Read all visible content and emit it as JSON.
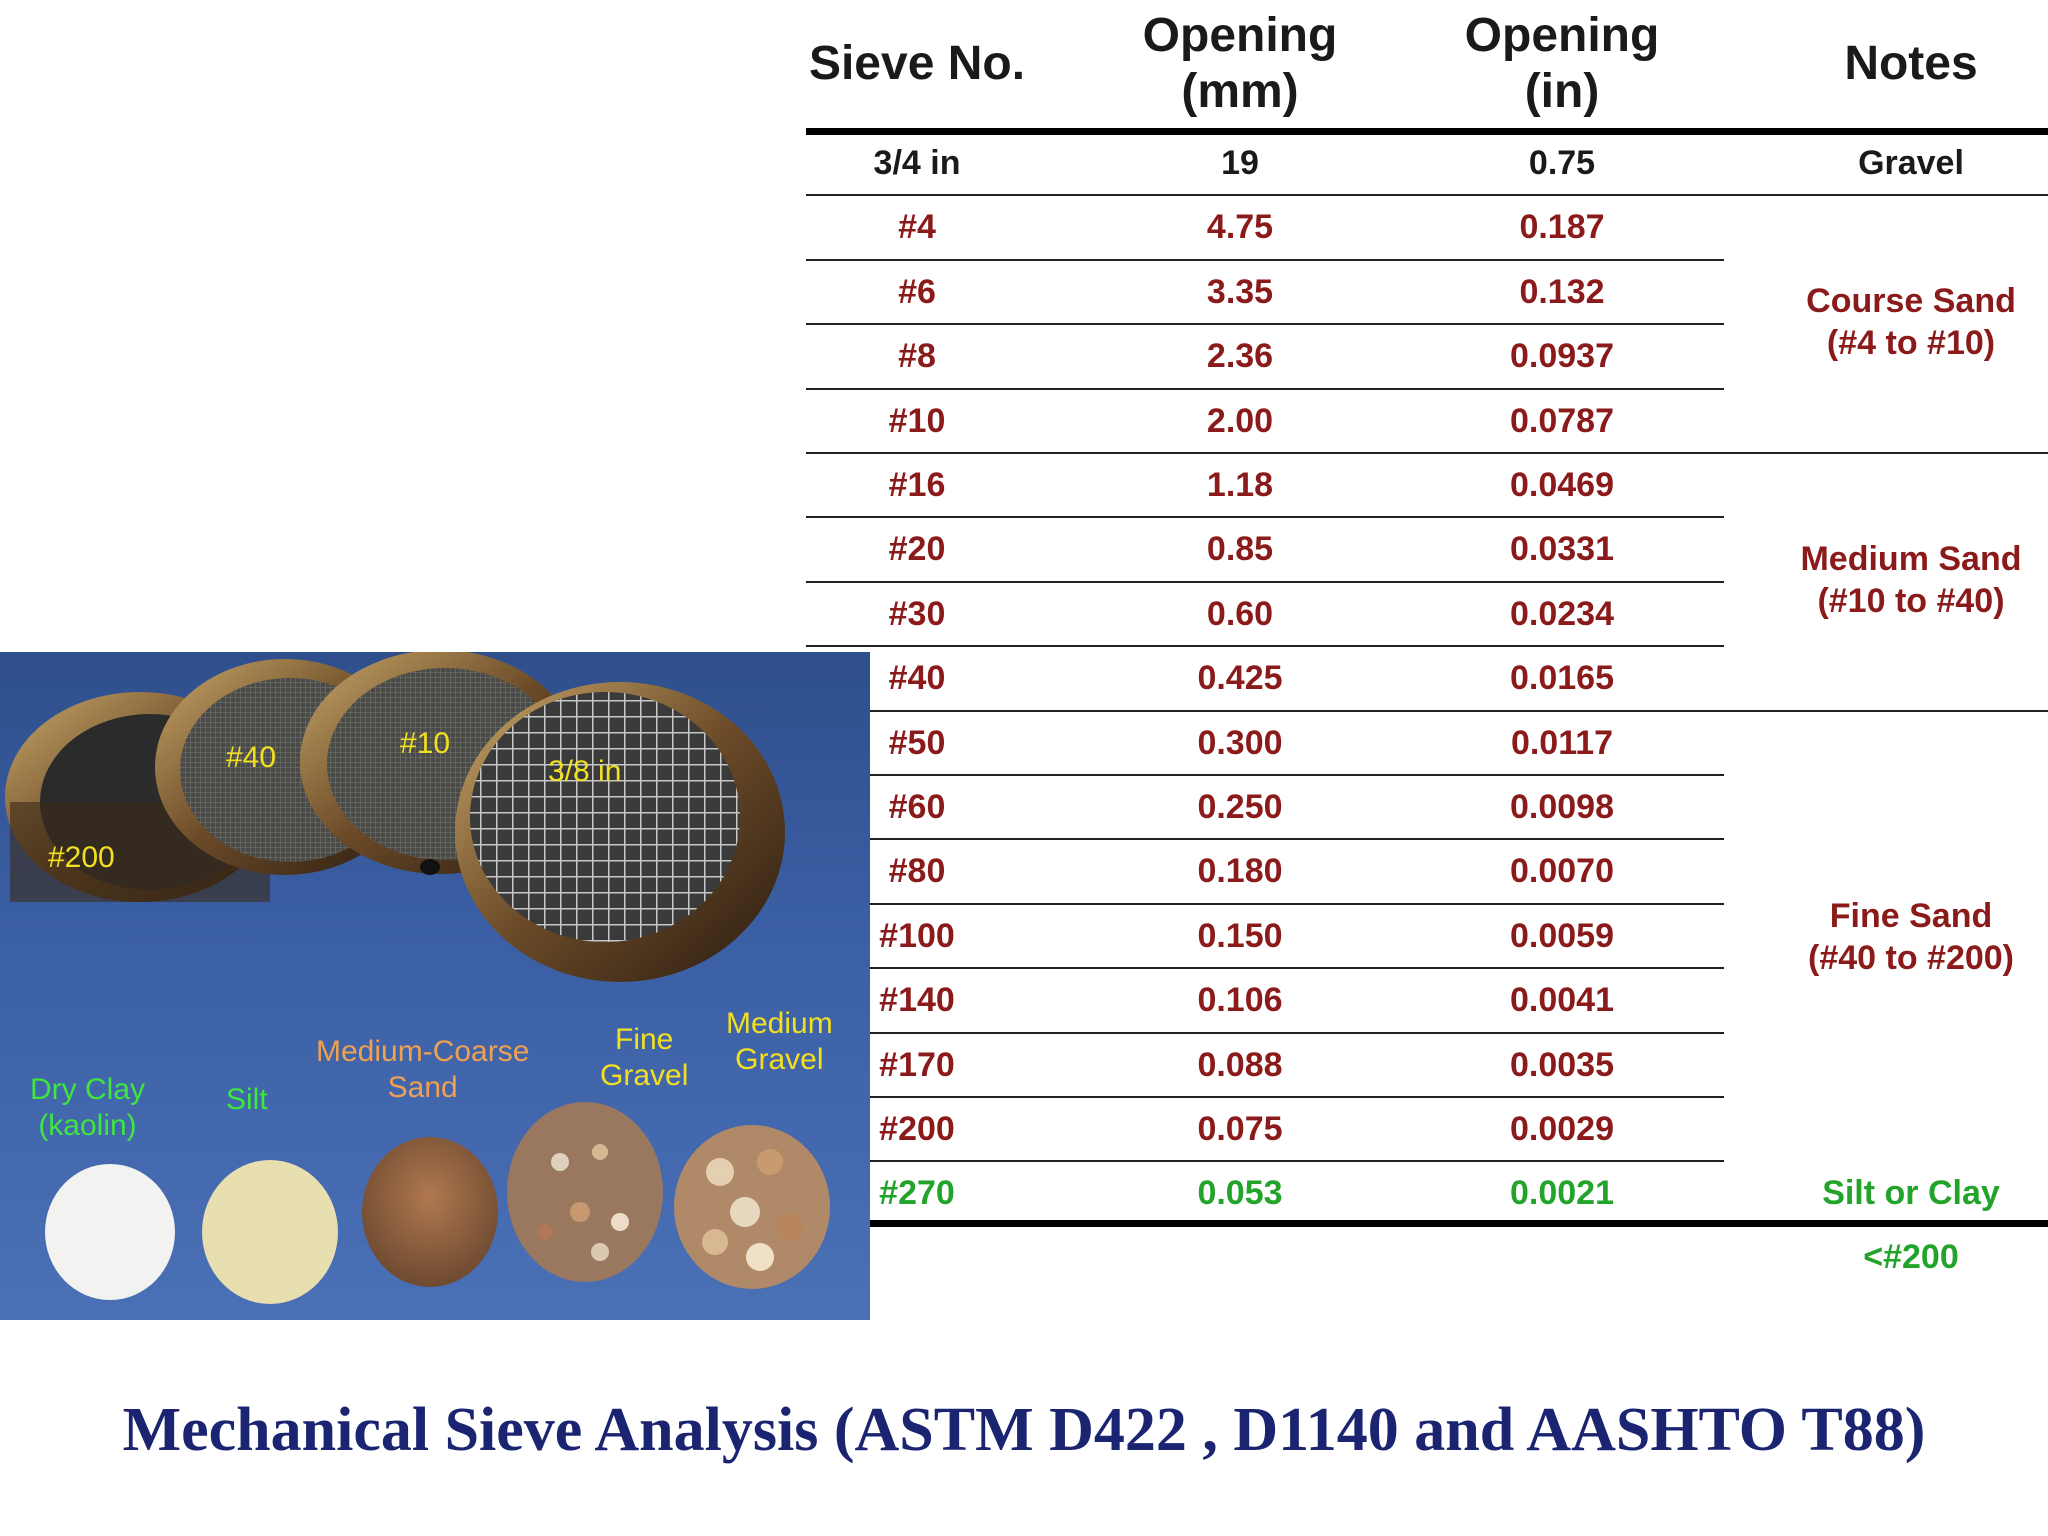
{
  "headers": {
    "sieve": "Sieve No.",
    "mm_line1": "Opening",
    "mm_line2": "(mm)",
    "in_line1": "Opening",
    "in_line2": "(in)",
    "notes": "Notes"
  },
  "rows": [
    {
      "sieve": "3/4 in",
      "mm": "19",
      "in": "0.75",
      "note": "Gravel"
    },
    {
      "sieve": "#4",
      "mm": "4.75",
      "in": "0.187"
    },
    {
      "sieve": "#6",
      "mm": "3.35",
      "in": "0.132"
    },
    {
      "sieve": "#8",
      "mm": "2.36",
      "in": "0.0937"
    },
    {
      "sieve": "#10",
      "mm": "2.00",
      "in": "0.0787"
    },
    {
      "sieve": "#16",
      "mm": "1.18",
      "in": "0.0469"
    },
    {
      "sieve": "#20",
      "mm": "0.85",
      "in": "0.0331"
    },
    {
      "sieve": "#30",
      "mm": "0.60",
      "in": "0.0234"
    },
    {
      "sieve": "#40",
      "mm": "0.425",
      "in": "0.0165"
    },
    {
      "sieve": "#50",
      "mm": "0.300",
      "in": "0.0117"
    },
    {
      "sieve": "#60",
      "mm": "0.250",
      "in": "0.0098"
    },
    {
      "sieve": "#80",
      "mm": "0.180",
      "in": "0.0070"
    },
    {
      "sieve": "#100",
      "mm": "0.150",
      "in": "0.0059"
    },
    {
      "sieve": "#140",
      "mm": "0.106",
      "in": "0.0041"
    },
    {
      "sieve": "#170",
      "mm": "0.088",
      "in": "0.0035"
    },
    {
      "sieve": "#200",
      "mm": "0.075",
      "in": "0.0029"
    },
    {
      "sieve": "#270",
      "mm": "0.053",
      "in": "0.0021",
      "note": "Silt or Clay <#200"
    }
  ],
  "notes_groups": {
    "coarse": {
      "line1": "Course Sand",
      "line2": "(#4 to #10)"
    },
    "medium": {
      "line1": "Medium Sand",
      "line2": "(#10 to #40)"
    },
    "fine": {
      "line1": "Fine Sand",
      "line2": "(#40 to #200)"
    }
  },
  "photo_labels": {
    "s200": "#200",
    "s40": "#40",
    "s10": "#10",
    "s38": "3/8 in",
    "dry_clay_1": "Dry Clay",
    "dry_clay_2": "(kaolin)",
    "silt": "Silt",
    "mc_sand_1": "Medium-Coarse",
    "mc_sand_2": "Sand",
    "fine_gravel_1": "Fine",
    "fine_gravel_2": "Gravel",
    "med_gravel_1": "Medium",
    "med_gravel_2": "Gravel"
  },
  "title": "Mechanical  Sieve Analysis (ASTM D422 , D1140 and AASHTO T88)",
  "colors": {
    "dark_red": "#8b1a1a",
    "green": "#22a32a",
    "title_blue": "#1a2470"
  }
}
